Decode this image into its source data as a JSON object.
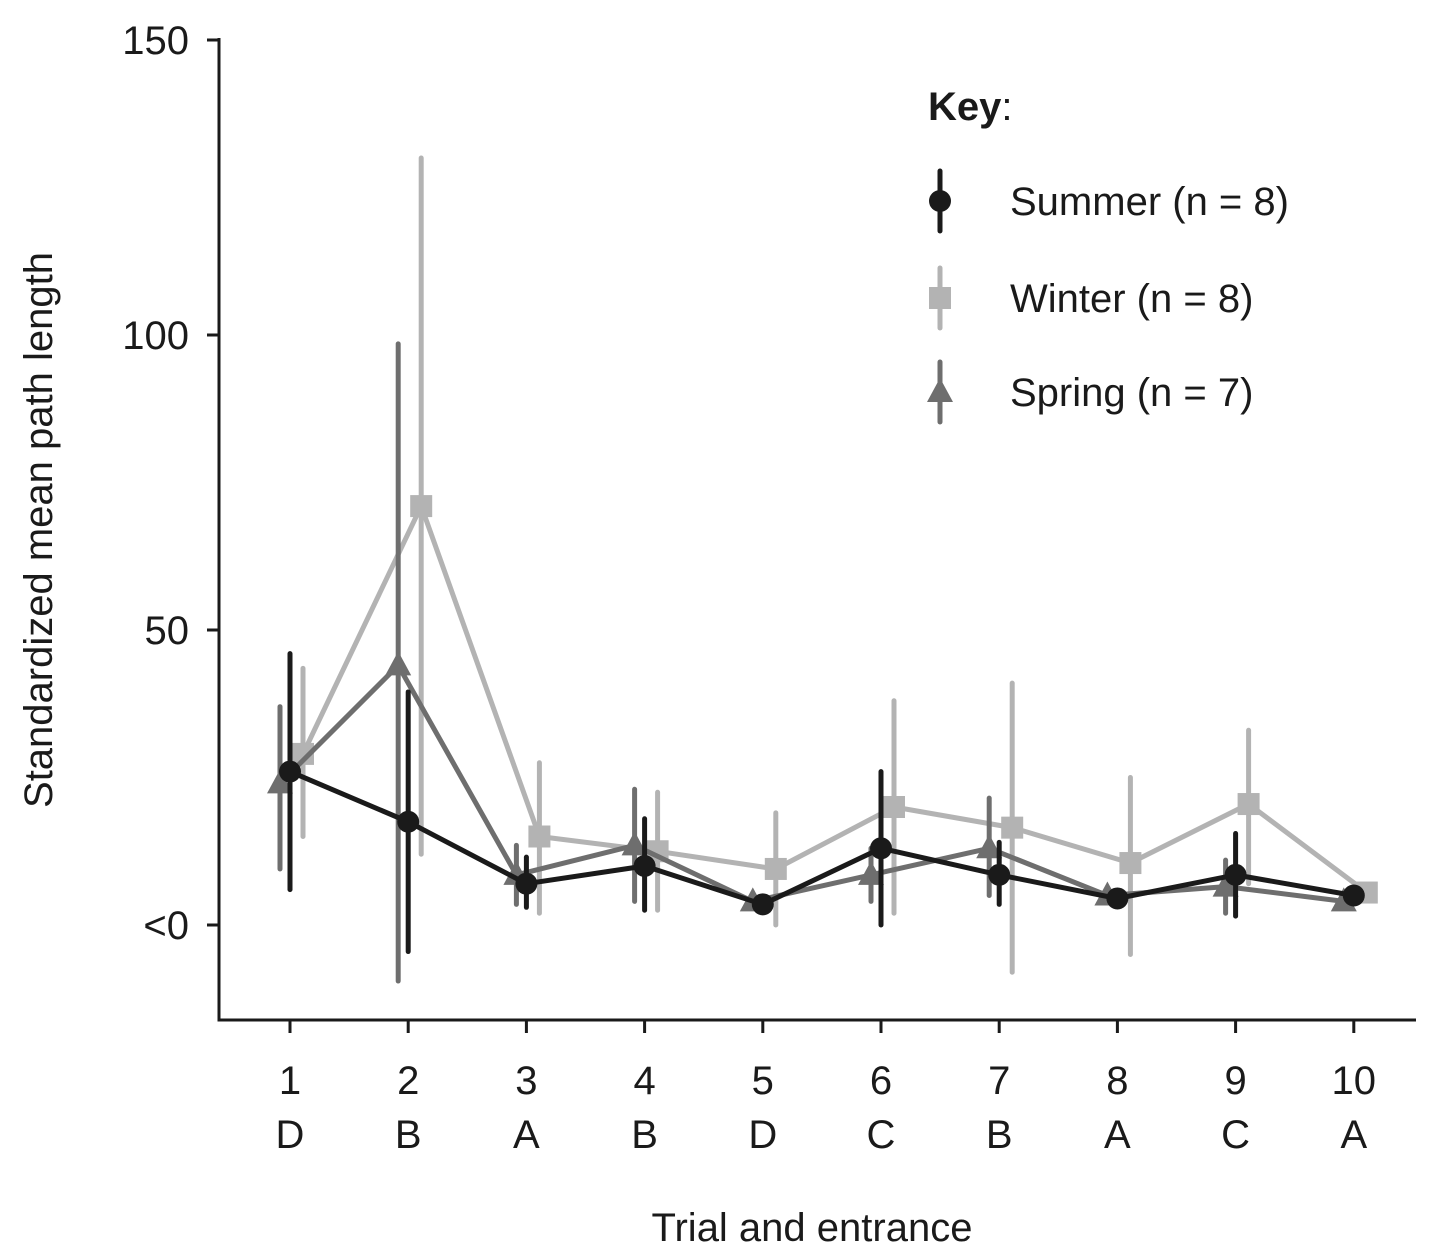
{
  "chart_data": {
    "type": "line",
    "xlabel": "Trial and entrance",
    "ylabel": "Standardized mean path length",
    "ylim": [
      -15,
      150
    ],
    "yticks": [
      0,
      50,
      100,
      150
    ],
    "ytick_labels": [
      "<0",
      "50",
      "100",
      "150"
    ],
    "categories": [
      "1",
      "2",
      "3",
      "4",
      "5",
      "6",
      "7",
      "8",
      "9",
      "10"
    ],
    "entrances": [
      "D",
      "B",
      "A",
      "B",
      "D",
      "C",
      "B",
      "A",
      "C",
      "A"
    ],
    "legend": {
      "title": "Key",
      "title_suffix": ":",
      "position": "top-right"
    },
    "series": [
      {
        "name": "Summer (n = 8)",
        "marker": "circle",
        "color": "#1a1a1a",
        "values": [
          26,
          17.5,
          7,
          10,
          3.5,
          13,
          8.5,
          4.5,
          8.5,
          5
        ],
        "err_low": [
          6,
          -4.5,
          3,
          2.5,
          3,
          0,
          3.5,
          4,
          1.5,
          4.5
        ],
        "err_high": [
          46,
          39.5,
          11.5,
          18,
          4,
          26,
          14,
          5,
          15.5,
          5.5
        ]
      },
      {
        "name": "Winter (n = 8)",
        "marker": "square",
        "color": "#b3b3b3",
        "values": [
          29,
          71,
          15,
          12.5,
          9.5,
          20,
          16.5,
          10.5,
          20.5,
          5.5
        ],
        "err_low": [
          15,
          12,
          2,
          2.5,
          0,
          2,
          -8,
          -5,
          7,
          5
        ],
        "err_high": [
          43.5,
          130,
          27.5,
          22.5,
          19,
          38,
          41,
          25,
          33,
          6
        ]
      },
      {
        "name": "Spring (n = 7)",
        "marker": "triangle",
        "color": "#6e6e6e",
        "values": [
          24,
          44,
          8.5,
          13.5,
          4,
          8.5,
          13,
          5,
          6.5,
          4
        ],
        "err_low": [
          9.5,
          -9.5,
          3.5,
          4,
          3.5,
          4,
          5,
          4.5,
          2,
          3.5
        ],
        "err_high": [
          37,
          98.5,
          13.5,
          23,
          4.5,
          13,
          21.5,
          5.5,
          11,
          4.5
        ]
      }
    ]
  }
}
